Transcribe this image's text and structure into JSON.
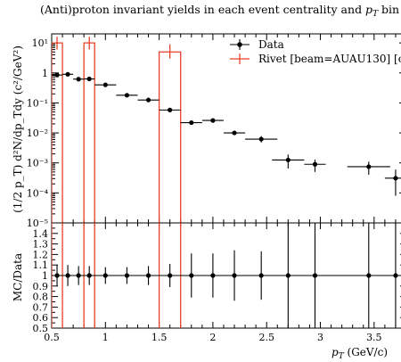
{
  "chart_data": {
    "type": "scatter",
    "title": "(Anti)proton invariant yields in each event centrality and p_T bin m",
    "xlabel": "p_T (GeV/c)",
    "ylabel_main": "(1/2 p_T) d²N/dp_Tdy (c²/GeV²)",
    "ylabel_ratio": "MC/Data",
    "xlim": [
      0.5,
      3.8
    ],
    "ylim_main": [
      1e-05,
      20
    ],
    "ylim_ratio": [
      0.5,
      1.5
    ],
    "log_y_main": true,
    "x_ticks": [
      0.5,
      1,
      1.5,
      2,
      2.5,
      3,
      3.5
    ],
    "x_tick_labels": [
      "0.5",
      "1",
      "1.5",
      "2",
      "2.5",
      "3",
      "3.5"
    ],
    "y_ticks_main": [
      1e-05,
      0.0001,
      0.001,
      0.01,
      0.1,
      1,
      10
    ],
    "y_tick_labels_main": [
      "10⁻⁵",
      "10⁻⁴",
      "10⁻³",
      "10⁻²",
      "10⁻¹",
      "1",
      "10¹"
    ],
    "y_ticks_ratio": [
      0.5,
      0.6,
      0.7,
      0.8,
      0.9,
      1,
      1.1,
      1.2,
      1.3,
      1.4
    ],
    "y_tick_labels_ratio": [
      "0.5",
      "0.6",
      "0.7",
      "0.8",
      "0.9",
      "1",
      "1.1",
      "1.2",
      "1.3",
      "1.4"
    ],
    "legend": [
      {
        "label": "Data",
        "color": "#000000",
        "marker": "dot"
      },
      {
        "label": "Rivet [beam=AUAU130] [c",
        "color": "#e8402a",
        "marker": "line"
      }
    ],
    "data_points": [
      {
        "x": 0.55,
        "xerr": 0.05,
        "y": 0.85,
        "ylo": 0.74,
        "yhi": 0.96
      },
      {
        "x": 0.65,
        "xerr": 0.05,
        "y": 0.9,
        "ylo": 0.8,
        "yhi": 1.0
      },
      {
        "x": 0.75,
        "xerr": 0.05,
        "y": 0.62,
        "ylo": 0.55,
        "yhi": 0.7
      },
      {
        "x": 0.85,
        "xerr": 0.05,
        "y": 0.63,
        "ylo": 0.56,
        "yhi": 0.7
      },
      {
        "x": 1.0,
        "xerr": 0.1,
        "y": 0.4,
        "ylo": 0.36,
        "yhi": 0.44
      },
      {
        "x": 1.2,
        "xerr": 0.1,
        "y": 0.18,
        "ylo": 0.16,
        "yhi": 0.2
      },
      {
        "x": 1.4,
        "xerr": 0.1,
        "y": 0.125,
        "ylo": 0.11,
        "yhi": 0.14
      },
      {
        "x": 1.6,
        "xerr": 0.1,
        "y": 0.058,
        "ylo": 0.05,
        "yhi": 0.066
      },
      {
        "x": 1.8,
        "xerr": 0.1,
        "y": 0.022,
        "ylo": 0.019,
        "yhi": 0.025
      },
      {
        "x": 2.0,
        "xerr": 0.1,
        "y": 0.026,
        "ylo": 0.022,
        "yhi": 0.03
      },
      {
        "x": 2.2,
        "xerr": 0.1,
        "y": 0.01,
        "ylo": 0.0085,
        "yhi": 0.0118
      },
      {
        "x": 2.45,
        "xerr": 0.15,
        "y": 0.0062,
        "ylo": 0.0048,
        "yhi": 0.0078
      },
      {
        "x": 2.7,
        "xerr": 0.15,
        "y": 0.00125,
        "ylo": 0.00065,
        "yhi": 0.0019
      },
      {
        "x": 2.95,
        "xerr": 0.1,
        "y": 0.0009,
        "ylo": 0.0005,
        "yhi": 0.0013
      },
      {
        "x": 3.45,
        "xerr": 0.2,
        "y": 0.00075,
        "ylo": 0.0004,
        "yhi": 0.0011
      },
      {
        "x": 3.7,
        "xerr": 0.1,
        "y": 0.00031,
        "ylo": 8e-05,
        "yhi": 0.0006
      }
    ],
    "ratio_points": [
      {
        "x": 0.55,
        "xerr": 0.05,
        "y": 1.0,
        "ylo": 0.9,
        "yhi": 1.1
      },
      {
        "x": 0.65,
        "xerr": 0.05,
        "y": 1.0,
        "ylo": 0.9,
        "yhi": 1.1
      },
      {
        "x": 0.75,
        "xerr": 0.05,
        "y": 1.0,
        "ylo": 0.91,
        "yhi": 1.09
      },
      {
        "x": 0.85,
        "xerr": 0.05,
        "y": 1.0,
        "ylo": 0.91,
        "yhi": 1.09
      },
      {
        "x": 1.0,
        "xerr": 0.1,
        "y": 1.0,
        "ylo": 0.92,
        "yhi": 1.08
      },
      {
        "x": 1.2,
        "xerr": 0.1,
        "y": 1.0,
        "ylo": 0.92,
        "yhi": 1.08
      },
      {
        "x": 1.4,
        "xerr": 0.1,
        "y": 1.0,
        "ylo": 0.91,
        "yhi": 1.09
      },
      {
        "x": 1.6,
        "xerr": 0.1,
        "y": 1.0,
        "ylo": 0.89,
        "yhi": 1.11
      },
      {
        "x": 1.8,
        "xerr": 0.1,
        "y": 1.0,
        "ylo": 0.79,
        "yhi": 1.21
      },
      {
        "x": 2.0,
        "xerr": 0.1,
        "y": 1.0,
        "ylo": 0.79,
        "yhi": 1.21
      },
      {
        "x": 2.2,
        "xerr": 0.1,
        "y": 1.0,
        "ylo": 0.76,
        "yhi": 1.24
      },
      {
        "x": 2.45,
        "xerr": 0.15,
        "y": 1.0,
        "ylo": 0.77,
        "yhi": 1.23
      },
      {
        "x": 2.7,
        "xerr": 0.15,
        "y": 1.0,
        "ylo": 0.5,
        "yhi": 1.5
      },
      {
        "x": 2.95,
        "xerr": 0.1,
        "y": 1.0,
        "ylo": 0.5,
        "yhi": 1.5
      },
      {
        "x": 3.45,
        "xerr": 0.2,
        "y": 1.0,
        "ylo": 0.5,
        "yhi": 1.5
      },
      {
        "x": 3.7,
        "xerr": 0.1,
        "y": 1.0,
        "ylo": 0.5,
        "yhi": 1.5
      }
    ],
    "mc_bins": [
      {
        "xlo": 0.5,
        "xhi": 0.6,
        "y": 10,
        "ylo": 6,
        "yhi": 16
      },
      {
        "xlo": 0.8,
        "xhi": 0.9,
        "y": 10,
        "ylo": 6,
        "yhi": 16
      },
      {
        "xlo": 1.5,
        "xhi": 1.7,
        "y": 5,
        "ylo": 3,
        "yhi": 9
      }
    ]
  }
}
